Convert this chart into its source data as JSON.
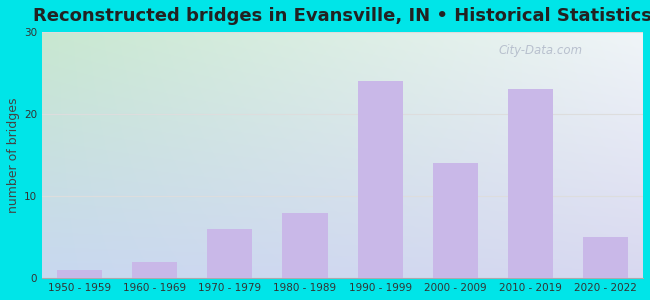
{
  "categories": [
    "1950 - 1959",
    "1960 - 1969",
    "1970 - 1979",
    "1980 - 1989",
    "1990 - 1999",
    "2000 - 2009",
    "2010 - 2019",
    "2020 - 2022"
  ],
  "values": [
    1,
    2,
    6,
    8,
    24,
    14,
    23,
    5
  ],
  "bar_color": "#c9b8e8",
  "title": "Reconstructed bridges in Evansville, IN • Historical Statistics",
  "ylabel": "number of bridges",
  "ylim": [
    0,
    30
  ],
  "yticks": [
    0,
    10,
    20,
    30
  ],
  "background_outer": "#00e5e8",
  "bg_top_left": "#c8e8c8",
  "bg_top_right": "#e8f0f8",
  "bg_bottom": "#c8d0f0",
  "grid_color": "#dddddd",
  "title_fontsize": 13,
  "tick_fontsize": 7.5,
  "ylabel_fontsize": 9,
  "watermark_text": "City-Data.com"
}
